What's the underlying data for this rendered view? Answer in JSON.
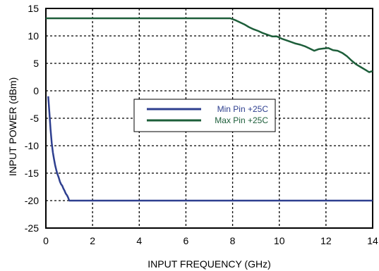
{
  "chart_data": {
    "type": "line",
    "title": "",
    "xlabel": "INPUT  FREQUENCY (GHz)",
    "ylabel": "INPUT POWER (dBm)",
    "xlim": [
      0,
      14
    ],
    "ylim": [
      -25,
      15
    ],
    "xticks": [
      "0",
      "2",
      "4",
      "6",
      "8",
      "10",
      "12",
      "14"
    ],
    "yticks": [
      "15",
      "10",
      "5",
      "0",
      "-5",
      "-10",
      "-15",
      "-20",
      "-25"
    ],
    "grid": "dashed",
    "legend_position": "center",
    "series": [
      {
        "name": "Min Pin +25C",
        "color": "#2e3f8f",
        "points": [
          [
            0.1,
            -1
          ],
          [
            0.15,
            -4
          ],
          [
            0.2,
            -7
          ],
          [
            0.25,
            -9.5
          ],
          [
            0.3,
            -11.2
          ],
          [
            0.35,
            -12.5
          ],
          [
            0.4,
            -13.6
          ],
          [
            0.45,
            -14.5
          ],
          [
            0.5,
            -15.2
          ],
          [
            0.55,
            -15.8
          ],
          [
            0.6,
            -16.5
          ],
          [
            0.65,
            -17.0
          ],
          [
            0.7,
            -17.3
          ],
          [
            0.75,
            -17.8
          ],
          [
            0.8,
            -18.2
          ],
          [
            0.85,
            -18.7
          ],
          [
            0.9,
            -19.0
          ],
          [
            0.95,
            -19.4
          ],
          [
            1.0,
            -20.0
          ],
          [
            1.5,
            -20.0
          ],
          [
            3,
            -20.0
          ],
          [
            6,
            -20.0
          ],
          [
            9,
            -20.0
          ],
          [
            12,
            -20.0
          ],
          [
            14,
            -20.0
          ]
        ]
      },
      {
        "name": "Max Pin +25C",
        "color": "#1d5e3a",
        "points": [
          [
            0,
            13.2
          ],
          [
            2,
            13.2
          ],
          [
            4,
            13.2
          ],
          [
            6,
            13.2
          ],
          [
            7.9,
            13.2
          ],
          [
            8.1,
            12.9
          ],
          [
            8.3,
            12.5
          ],
          [
            8.5,
            12.1
          ],
          [
            8.7,
            11.6
          ],
          [
            8.9,
            11.2
          ],
          [
            9.1,
            10.9
          ],
          [
            9.3,
            10.5
          ],
          [
            9.5,
            10.2
          ],
          [
            9.7,
            9.9
          ],
          [
            9.9,
            9.9
          ],
          [
            10.1,
            9.5
          ],
          [
            10.3,
            9.2
          ],
          [
            10.5,
            8.9
          ],
          [
            10.7,
            8.6
          ],
          [
            10.9,
            8.4
          ],
          [
            11.1,
            8.1
          ],
          [
            11.3,
            7.7
          ],
          [
            11.5,
            7.3
          ],
          [
            11.7,
            7.6
          ],
          [
            11.9,
            7.7
          ],
          [
            12.1,
            7.8
          ],
          [
            12.3,
            7.4
          ],
          [
            12.5,
            7.3
          ],
          [
            12.7,
            6.9
          ],
          [
            12.9,
            6.3
          ],
          [
            13.1,
            5.5
          ],
          [
            13.3,
            4.8
          ],
          [
            13.5,
            4.3
          ],
          [
            13.7,
            3.8
          ],
          [
            13.85,
            3.4
          ],
          [
            14,
            3.6
          ]
        ]
      }
    ]
  }
}
